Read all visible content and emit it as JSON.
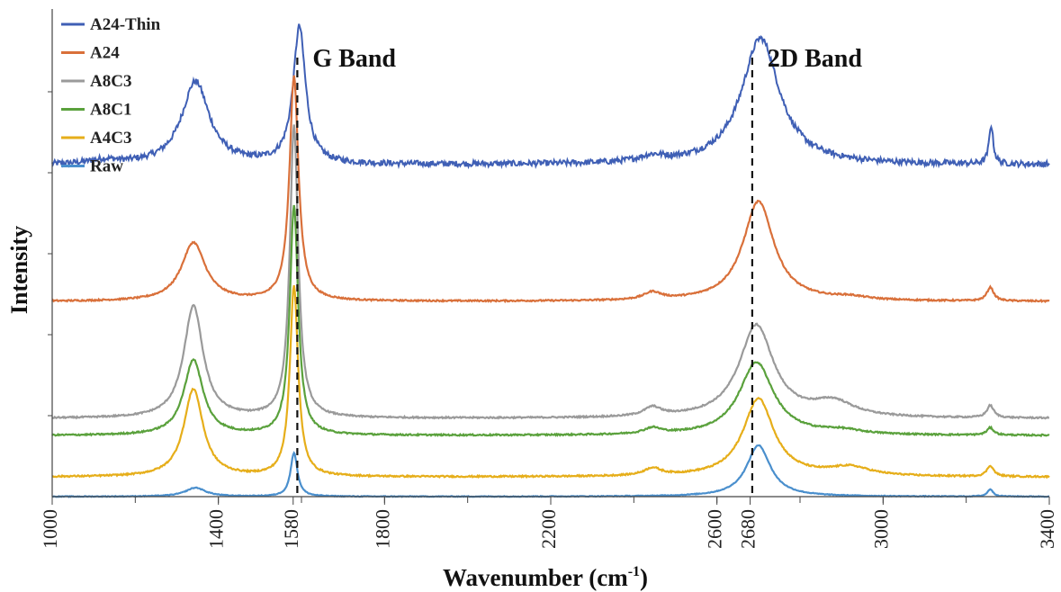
{
  "chart_data": {
    "type": "line",
    "xlabel": "Wavenumber (cm",
    "xlabel_sup": "-1",
    "xlabel_suffix": ")",
    "ylabel": "Intensity",
    "xlim": [
      1000,
      3400
    ],
    "ylim": [
      0,
      1
    ],
    "x_ticks": [
      1000,
      1400,
      1580,
      1800,
      2200,
      2600,
      2680,
      3000,
      3400
    ],
    "grid": false,
    "legend_position": "top-left",
    "annotations": [
      {
        "text": "G Band",
        "x": 1590
      },
      {
        "text": "2D Band",
        "x": 2685
      }
    ],
    "series": [
      {
        "name": "A24-Thin",
        "color": "#3f5fb5",
        "baseline": 0.68,
        "noise": 0.006,
        "peaks": [
          [
            1125,
            0.008,
            40
          ],
          [
            1345,
            0.17,
            40
          ],
          [
            1595,
            0.28,
            18
          ],
          [
            2445,
            0.012,
            40
          ],
          [
            2705,
            0.26,
            55
          ],
          [
            3260,
            0.08,
            6
          ]
        ]
      },
      {
        "name": "A24",
        "color": "#d9703a",
        "baseline": 0.4,
        "noise": 0.0015,
        "peaks": [
          [
            1340,
            0.12,
            35
          ],
          [
            1582,
            0.46,
            13
          ],
          [
            2445,
            0.015,
            25
          ],
          [
            2700,
            0.205,
            45
          ],
          [
            2920,
            0.006,
            50
          ],
          [
            3258,
            0.028,
            10
          ]
        ]
      },
      {
        "name": "A8C3",
        "color": "#9a9a9a",
        "baseline": 0.16,
        "noise": 0.0015,
        "peaks": [
          [
            1340,
            0.23,
            28
          ],
          [
            1582,
            0.6,
            12
          ],
          [
            2445,
            0.018,
            25
          ],
          [
            2695,
            0.19,
            50
          ],
          [
            2880,
            0.03,
            60
          ],
          [
            3258,
            0.025,
            10
          ]
        ]
      },
      {
        "name": "A8C1",
        "color": "#5aa13c",
        "baseline": 0.125,
        "noise": 0.0015,
        "peaks": [
          [
            1340,
            0.155,
            28
          ],
          [
            1582,
            0.47,
            12
          ],
          [
            2445,
            0.012,
            25
          ],
          [
            2695,
            0.15,
            50
          ],
          [
            2900,
            0.008,
            60
          ],
          [
            3258,
            0.015,
            10
          ]
        ]
      },
      {
        "name": "A4C3",
        "color": "#e6ae1a",
        "baseline": 0.04,
        "noise": 0.0015,
        "peaks": [
          [
            1340,
            0.18,
            28
          ],
          [
            1582,
            0.39,
            12
          ],
          [
            2445,
            0.015,
            25
          ],
          [
            2700,
            0.16,
            45
          ],
          [
            2920,
            0.018,
            60
          ],
          [
            3258,
            0.022,
            10
          ]
        ]
      },
      {
        "name": "Raw",
        "color": "#4a8fcd",
        "baseline": 0.0,
        "noise": 0.0008,
        "peaks": [
          [
            1345,
            0.018,
            30
          ],
          [
            1582,
            0.09,
            10
          ],
          [
            2700,
            0.105,
            35
          ],
          [
            3258,
            0.015,
            8
          ]
        ]
      }
    ]
  }
}
